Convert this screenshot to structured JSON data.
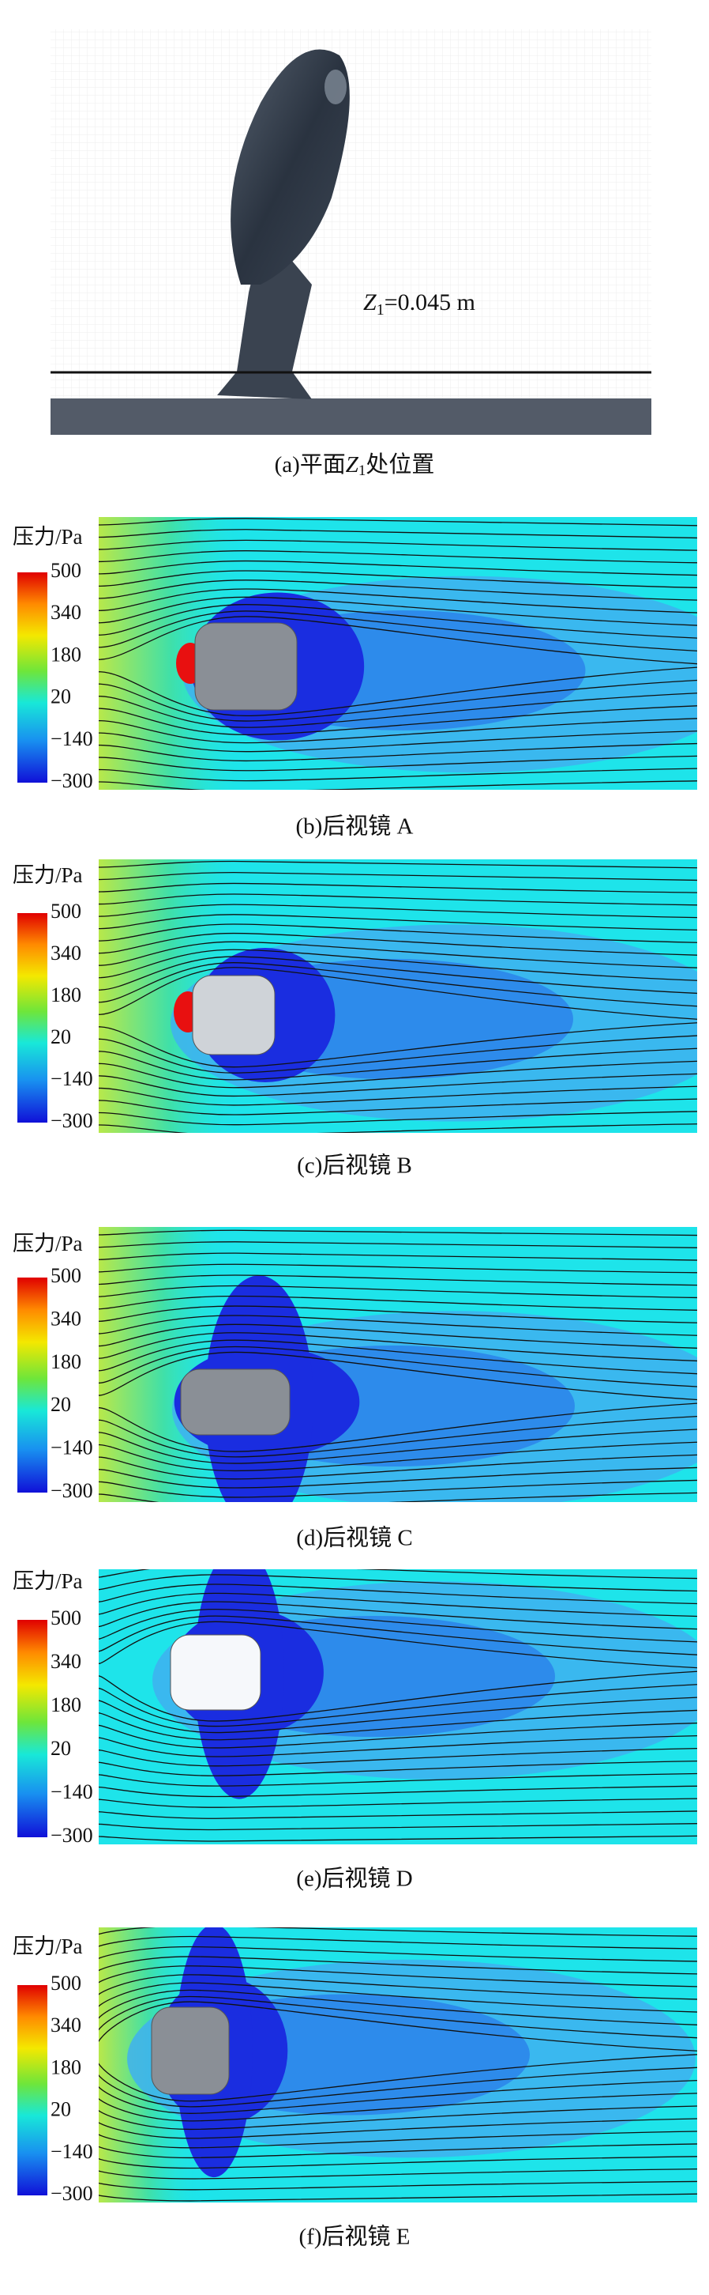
{
  "panels": [
    {
      "caption": {
        "prefix": "(a)平面",
        "var": "Z",
        "sub": "1",
        "suffix": "处位置"
      },
      "annotation": {
        "var": "Z",
        "sub": "1",
        "text": "=0.045 m"
      }
    },
    {
      "caption": "(b)后视镜 A",
      "colorbar": {
        "label": "压力/Pa",
        "ticks": [
          "500",
          "340",
          "180",
          "20",
          "−140",
          "−300"
        ]
      }
    },
    {
      "caption": "(c)后视镜 B",
      "colorbar": {
        "label": "压力/Pa",
        "ticks": [
          "500",
          "340",
          "180",
          "20",
          "−140",
          "−300"
        ]
      }
    },
    {
      "caption": "(d)后视镜 C",
      "colorbar": {
        "label": "压力/Pa",
        "ticks": [
          "500",
          "340",
          "180",
          "20",
          "−140",
          "−300"
        ]
      }
    },
    {
      "caption": "(e)后视镜 D",
      "colorbar": {
        "label": "压力/Pa",
        "ticks": [
          "500",
          "340",
          "180",
          "20",
          "−140",
          "−300"
        ]
      }
    },
    {
      "caption": "(f)后视镜 E",
      "colorbar": {
        "label": "压力/Pa",
        "ticks": [
          "500",
          "340",
          "180",
          "20",
          "−140",
          "−300"
        ]
      }
    }
  ]
}
